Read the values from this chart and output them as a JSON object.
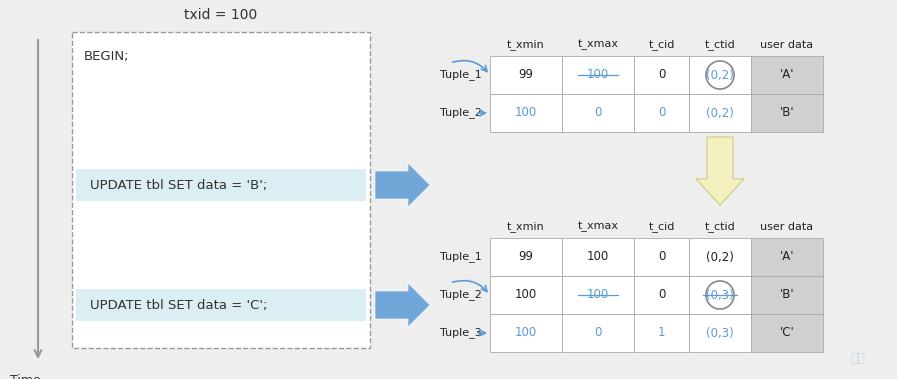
{
  "title": "txid = 100",
  "bg_color": "#eeeeee",
  "table_header": [
    "t_xmin",
    "t_xmax",
    "t_cid",
    "t_ctid",
    "user data"
  ],
  "table1_rows": [
    {
      "label": "Tuple_1",
      "values": [
        "99",
        "100",
        "0",
        "(0,2)",
        "'A'"
      ],
      "strikethrough": [
        false,
        true,
        false,
        false,
        false
      ],
      "blue": [
        false,
        true,
        false,
        true,
        false
      ],
      "circled": [
        false,
        false,
        false,
        true,
        false
      ]
    },
    {
      "label": "Tuple_2",
      "values": [
        "100",
        "0",
        "0",
        "(0,2)",
        "'B'"
      ],
      "strikethrough": [
        false,
        false,
        false,
        false,
        false
      ],
      "blue": [
        true,
        true,
        true,
        true,
        false
      ],
      "circled": [
        false,
        false,
        false,
        false,
        false
      ]
    }
  ],
  "table2_rows": [
    {
      "label": "Tuple_1",
      "values": [
        "99",
        "100",
        "0",
        "(0,2)",
        "'A'"
      ],
      "strikethrough": [
        false,
        false,
        false,
        false,
        false
      ],
      "blue": [
        false,
        false,
        false,
        false,
        false
      ],
      "circled": [
        false,
        false,
        false,
        false,
        false
      ]
    },
    {
      "label": "Tuple_2",
      "values": [
        "100",
        "100",
        "0",
        "(0,3)",
        "'B'"
      ],
      "strikethrough": [
        false,
        true,
        false,
        true,
        false
      ],
      "blue": [
        false,
        true,
        false,
        true,
        false
      ],
      "circled": [
        false,
        false,
        false,
        true,
        false
      ]
    },
    {
      "label": "Tuple_3",
      "values": [
        "100",
        "0",
        "1",
        "(0,3)",
        "'C'"
      ],
      "strikethrough": [
        false,
        false,
        false,
        false,
        false
      ],
      "blue": [
        true,
        true,
        true,
        true,
        false
      ],
      "circled": [
        false,
        false,
        false,
        false,
        false
      ]
    }
  ],
  "arrow_color": "#5b9bd5",
  "cell_gray": "#d0d0d0",
  "cell_white": "#ffffff",
  "blue_text": "#5b9bd5",
  "black_text": "#222222",
  "code_bg": "#daeef3",
  "box_border": "#999999",
  "time_color": "#999999"
}
